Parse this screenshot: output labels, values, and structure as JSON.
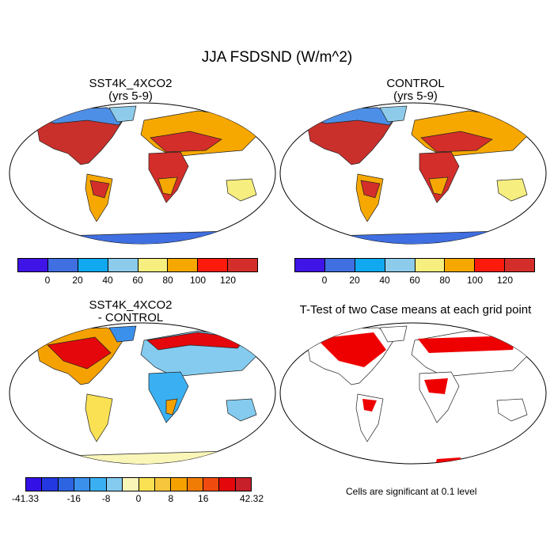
{
  "figure_title": "JJA FSDSND (W/m^2)",
  "panels": [
    {
      "title_line1": "SST4K_4XCO2",
      "title_line2": "(yrs 5-9)"
    },
    {
      "title_line1": "CONTROL",
      "title_line2": "(yrs 5-9)"
    },
    {
      "title_line1": "SST4K_4XCO2",
      "title_line2": "- CONTROL"
    },
    {
      "title_line1": "T-Test of two Case means at each grid point",
      "title_line2": ""
    }
  ],
  "colorbar_main": {
    "colors": [
      "#3f14e6",
      "#3f6fe0",
      "#10a8ee",
      "#8ccbea",
      "#f6ee7e",
      "#f6a800",
      "#fb1a0c",
      "#d42e2a"
    ],
    "labels": [
      "0",
      "20",
      "40",
      "60",
      "80",
      "100",
      "120"
    ]
  },
  "colorbar_diff": {
    "colors": [
      "#3210e6",
      "#2338e0",
      "#2d64e2",
      "#3b90ec",
      "#3ab0f2",
      "#84cbef",
      "#f9f6b8",
      "#f9e153",
      "#f8c63c",
      "#f5a100",
      "#f07c06",
      "#f04a0e",
      "#e4080c",
      "#c8202a"
    ],
    "labels": [
      "-41.33",
      "-16",
      "-8",
      "0",
      "8",
      "16",
      "42.32"
    ]
  },
  "significance_note": "Cells are significant at 0.1 level"
}
